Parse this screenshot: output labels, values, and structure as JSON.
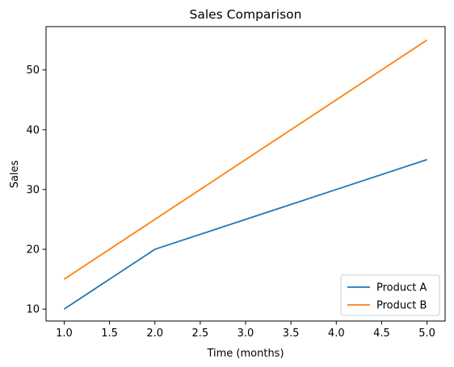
{
  "chart_data": {
    "type": "line",
    "title": "Sales Comparison",
    "xlabel": "Time (months)",
    "ylabel": "Sales",
    "x": [
      1,
      2,
      3,
      4,
      5
    ],
    "series": [
      {
        "name": "Product A",
        "values": [
          10,
          20,
          25,
          30,
          35
        ],
        "color": "#1f77b4"
      },
      {
        "name": "Product B",
        "values": [
          15,
          25,
          35,
          45,
          55
        ],
        "color": "#ff7f0e"
      }
    ],
    "xlim": [
      0.8,
      5.2
    ],
    "ylim": [
      8,
      57.25
    ],
    "xticks": [
      1.0,
      1.5,
      2.0,
      2.5,
      3.0,
      3.5,
      4.0,
      4.5,
      5.0
    ],
    "xtick_labels": [
      "1.0",
      "1.5",
      "2.0",
      "2.5",
      "3.0",
      "3.5",
      "4.0",
      "4.5",
      "5.0"
    ],
    "yticks": [
      10,
      20,
      30,
      40,
      50
    ],
    "ytick_labels": [
      "10",
      "20",
      "30",
      "40",
      "50"
    ],
    "grid": false,
    "legend_position": "lower-right"
  }
}
